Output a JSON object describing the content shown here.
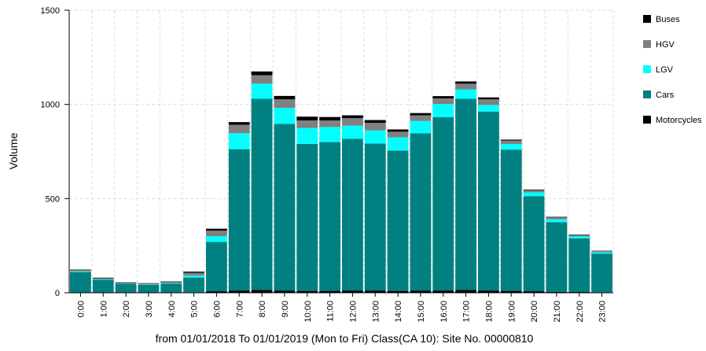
{
  "chart_data": {
    "type": "stacked_bar",
    "subtitle": "from 01/01/2018 To 01/01/2019  (Mon to Fri)   Class(CA 10): Site No. 00000810",
    "y_label": "Volume",
    "categories": [
      "0:00",
      "1:00",
      "2:00",
      "3:00",
      "4:00",
      "5:00",
      "6:00",
      "7:00",
      "8:00",
      "9:00",
      "10:00",
      "11:00",
      "12:00",
      "13:00",
      "14:00",
      "15:00",
      "16:00",
      "17:00",
      "18:00",
      "19:00",
      "20:00",
      "21:00",
      "22:00",
      "23:00"
    ],
    "series": [
      {
        "name": "Motorcycles",
        "color": "#000000",
        "values": [
          2,
          1,
          1,
          1,
          1,
          3,
          8,
          12,
          15,
          12,
          10,
          10,
          12,
          12,
          10,
          12,
          12,
          15,
          12,
          10,
          8,
          5,
          4,
          3
        ]
      },
      {
        "name": "Cars",
        "color": "#008080",
        "values": [
          108,
          68,
          45,
          42,
          48,
          78,
          262,
          750,
          1015,
          885,
          780,
          790,
          805,
          780,
          745,
          835,
          920,
          1015,
          950,
          750,
          505,
          370,
          285,
          205
        ]
      },
      {
        "name": "LGV",
        "color": "#00ffff",
        "values": [
          4,
          3,
          2,
          2,
          3,
          10,
          30,
          85,
          80,
          85,
          85,
          80,
          70,
          70,
          70,
          65,
          70,
          50,
          35,
          30,
          20,
          15,
          10,
          7
        ]
      },
      {
        "name": "HGV",
        "color": "#808080",
        "values": [
          6,
          5,
          4,
          4,
          5,
          15,
          30,
          45,
          45,
          45,
          40,
          35,
          40,
          40,
          30,
          30,
          30,
          30,
          30,
          18,
          12,
          10,
          8,
          6
        ]
      },
      {
        "name": "Buses",
        "color": "#000000",
        "values": [
          3,
          3,
          3,
          2,
          3,
          6,
          10,
          14,
          20,
          18,
          20,
          18,
          15,
          15,
          12,
          12,
          12,
          12,
          10,
          5,
          3,
          3,
          2,
          2
        ]
      }
    ],
    "ylim": [
      0,
      1500
    ],
    "yticks": [
      0,
      500,
      1000,
      1500
    ],
    "grid": true,
    "legend": "right"
  }
}
